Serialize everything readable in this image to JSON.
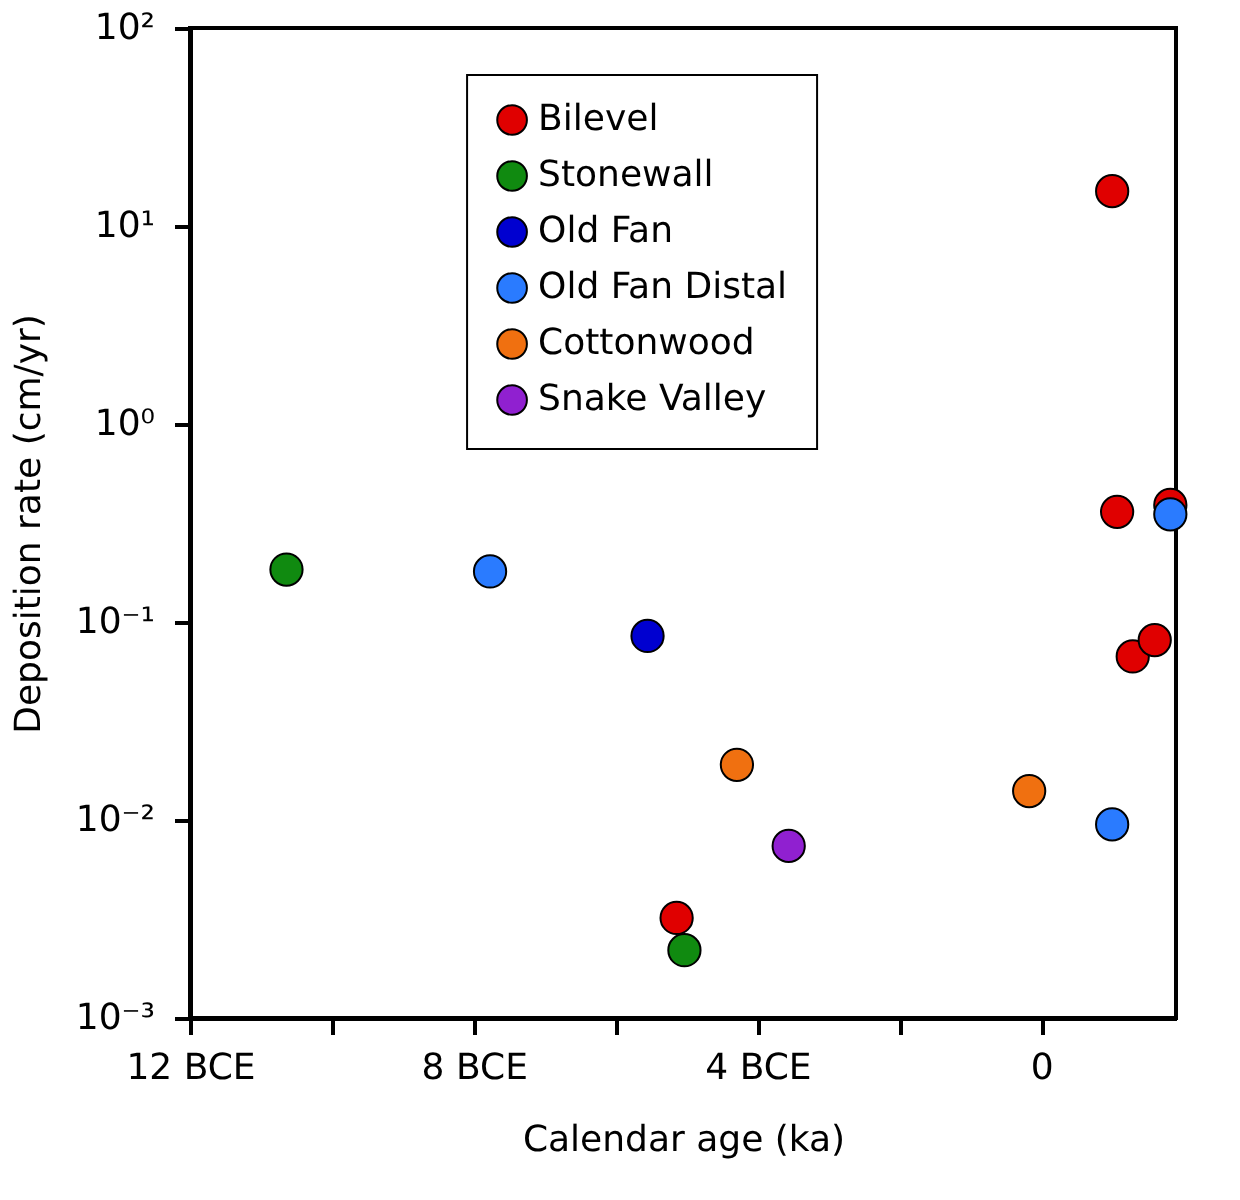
{
  "chart_data": {
    "type": "scatter",
    "xlabel": "Calendar age (ka)",
    "ylabel": "Deposition rate (cm/yr)",
    "xlim": [
      -12,
      1.9
    ],
    "xticks": [
      {
        "value": -12,
        "label": "12 BCE"
      },
      {
        "value": -10,
        "label": null
      },
      {
        "value": -8,
        "label": "8 BCE"
      },
      {
        "value": -6,
        "label": null
      },
      {
        "value": -4,
        "label": "4 BCE"
      },
      {
        "value": -2,
        "label": null
      },
      0
    ],
    "ylim": [
      0.001,
      100
    ],
    "yticks": [
      {
        "value": 0.001,
        "label": "10⁻³"
      },
      {
        "value": 0.01,
        "label": "10⁻²"
      },
      {
        "value": 0.1,
        "label": "10⁻¹"
      },
      {
        "value": 1,
        "label": "10⁰"
      },
      {
        "value": 10,
        "label": "10¹"
      },
      {
        "value": 100,
        "label": "10²"
      }
    ],
    "log": "y",
    "grid": false,
    "legend": "top",
    "marker": "circle",
    "series": [
      {
        "name": "Bilevel",
        "color": "#e00000",
        "x": [
          1.0,
          1.07,
          1.82,
          1.29,
          1.6,
          -5.14
        ],
        "values": [
          15,
          0.36,
          0.39,
          0.067,
          0.081,
          0.0032
        ]
      },
      {
        "name": "Stonewall",
        "color": "#108a10",
        "x": [
          -10.64,
          -5.03
        ],
        "values": [
          0.184,
          0.0022
        ]
      },
      {
        "name": "Old Fan",
        "color": "#0000d0",
        "x": [
          -5.55
        ],
        "values": [
          0.085
        ]
      },
      {
        "name": "Old Fan Distal",
        "color": "#2a7bff",
        "x": [
          -7.77,
          1.0,
          1.82
        ],
        "values": [
          0.18,
          0.0095,
          0.35
        ]
      },
      {
        "name": "Cottonwood",
        "color": "#f07010",
        "x": [
          -4.29,
          -0.17
        ],
        "values": [
          0.019,
          0.014
        ]
      },
      {
        "name": "Snake Valley",
        "color": "#9020d0",
        "x": [
          -3.56
        ],
        "values": [
          0.0074
        ]
      }
    ]
  }
}
